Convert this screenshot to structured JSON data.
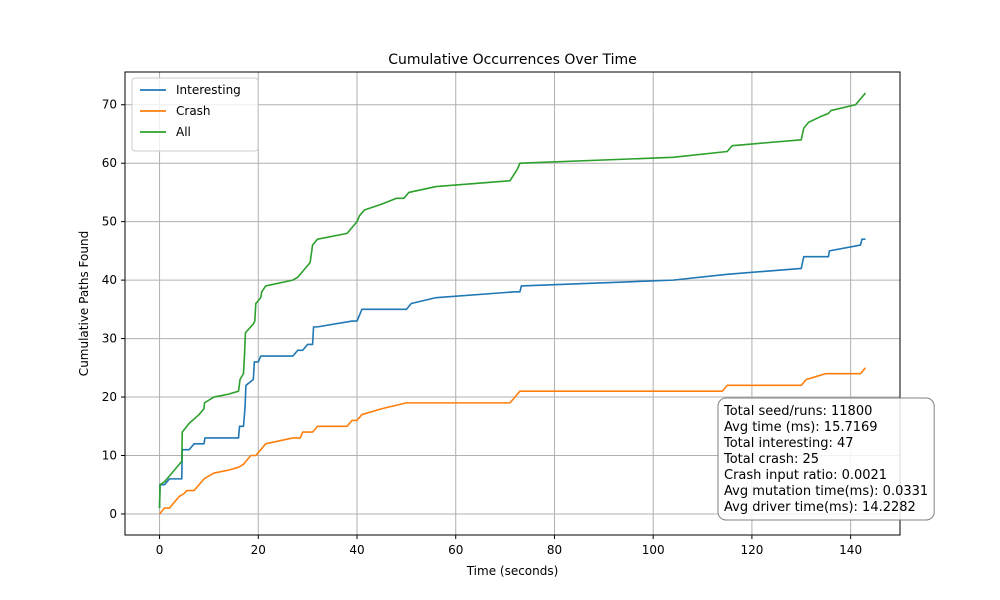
{
  "chart_data": {
    "type": "line",
    "title": "Cumulative Occurrences Over Time",
    "xlabel": "Time (seconds)",
    "ylabel": "Cumulative Paths Found",
    "xlim": [
      -7,
      150
    ],
    "ylim": [
      -3.6,
      75.6
    ],
    "xticks": [
      0,
      20,
      40,
      60,
      80,
      100,
      120,
      140
    ],
    "yticks": [
      0,
      10,
      20,
      30,
      40,
      50,
      60,
      70
    ],
    "grid": true,
    "legend_position": "top-left",
    "series": [
      {
        "name": "Interesting",
        "color": "#1f77b4",
        "points": [
          [
            0,
            1
          ],
          [
            0.1,
            5
          ],
          [
            1,
            5
          ],
          [
            1.5,
            5.5
          ],
          [
            2,
            6
          ],
          [
            4.5,
            6
          ],
          [
            4.6,
            11
          ],
          [
            6,
            11
          ],
          [
            7,
            12
          ],
          [
            9,
            12
          ],
          [
            9.2,
            13
          ],
          [
            16,
            13
          ],
          [
            16.2,
            15
          ],
          [
            17,
            15
          ],
          [
            17.3,
            18
          ],
          [
            17.5,
            22
          ],
          [
            19,
            23
          ],
          [
            19.2,
            26
          ],
          [
            20,
            26
          ],
          [
            20.5,
            27
          ],
          [
            27,
            27
          ],
          [
            28,
            28
          ],
          [
            29,
            28
          ],
          [
            30,
            29
          ],
          [
            31,
            29
          ],
          [
            31.2,
            32
          ],
          [
            32,
            32
          ],
          [
            39,
            33
          ],
          [
            40,
            33
          ],
          [
            40.5,
            34
          ],
          [
            41,
            35
          ],
          [
            50,
            35
          ],
          [
            51,
            36
          ],
          [
            56,
            37
          ],
          [
            72,
            38
          ],
          [
            73,
            38
          ],
          [
            73.3,
            39
          ],
          [
            104,
            40
          ],
          [
            115,
            41
          ],
          [
            130,
            42
          ],
          [
            130.5,
            44
          ],
          [
            135.5,
            44
          ],
          [
            135.7,
            45
          ],
          [
            142,
            46
          ],
          [
            142.3,
            47
          ],
          [
            143,
            47
          ]
        ]
      },
      {
        "name": "Crash",
        "color": "#ff7f0e",
        "points": [
          [
            0,
            0
          ],
          [
            0.5,
            0.5
          ],
          [
            1,
            1
          ],
          [
            2,
            1
          ],
          [
            3,
            2
          ],
          [
            4,
            3
          ],
          [
            5,
            3.5
          ],
          [
            5.5,
            4
          ],
          [
            7,
            4
          ],
          [
            8,
            5
          ],
          [
            9,
            6
          ],
          [
            10,
            6.5
          ],
          [
            11,
            7
          ],
          [
            14,
            7.5
          ],
          [
            16,
            8
          ],
          [
            17,
            8.5
          ],
          [
            18,
            9.5
          ],
          [
            18.5,
            10
          ],
          [
            19.5,
            10
          ],
          [
            20,
            10.5
          ],
          [
            21,
            11.5
          ],
          [
            21.5,
            12
          ],
          [
            27,
            13
          ],
          [
            28.5,
            13
          ],
          [
            29,
            14
          ],
          [
            30,
            14
          ],
          [
            31,
            14
          ],
          [
            32,
            15
          ],
          [
            38,
            15
          ],
          [
            39,
            16
          ],
          [
            40,
            16
          ],
          [
            41,
            17
          ],
          [
            45,
            18
          ],
          [
            50,
            19
          ],
          [
            71,
            19
          ],
          [
            72,
            20
          ],
          [
            73,
            21
          ],
          [
            114,
            21
          ],
          [
            115,
            22
          ],
          [
            130,
            22
          ],
          [
            131,
            23
          ],
          [
            133,
            23.5
          ],
          [
            135,
            24
          ],
          [
            142,
            24
          ],
          [
            143,
            25
          ]
        ]
      },
      {
        "name": "All",
        "color": "#2ca02c",
        "points": [
          [
            0,
            1
          ],
          [
            0.1,
            5
          ],
          [
            1,
            5.5
          ],
          [
            2,
            6.5
          ],
          [
            3,
            7.5
          ],
          [
            4,
            8.5
          ],
          [
            4.5,
            9
          ],
          [
            4.6,
            14
          ],
          [
            6,
            15.5
          ],
          [
            8,
            17
          ],
          [
            9,
            18
          ],
          [
            9.1,
            19
          ],
          [
            11,
            20
          ],
          [
            14,
            20.5
          ],
          [
            16,
            21
          ],
          [
            16.3,
            23
          ],
          [
            17,
            24
          ],
          [
            17.2,
            27
          ],
          [
            17.4,
            31
          ],
          [
            19,
            32.5
          ],
          [
            19.3,
            33
          ],
          [
            19.5,
            36
          ],
          [
            20,
            36.5
          ],
          [
            20.5,
            37
          ],
          [
            20.7,
            38
          ],
          [
            21.5,
            39
          ],
          [
            27,
            40
          ],
          [
            28,
            40.5
          ],
          [
            29,
            41.5
          ],
          [
            30.5,
            43
          ],
          [
            31,
            46
          ],
          [
            32,
            47
          ],
          [
            38,
            48
          ],
          [
            39,
            49
          ],
          [
            40,
            50
          ],
          [
            40.5,
            51
          ],
          [
            41.5,
            52
          ],
          [
            45,
            53
          ],
          [
            48,
            54
          ],
          [
            49.5,
            54
          ],
          [
            50.5,
            55
          ],
          [
            56,
            56
          ],
          [
            71,
            57
          ],
          [
            72.5,
            59
          ],
          [
            73,
            60
          ],
          [
            104,
            61
          ],
          [
            115,
            62
          ],
          [
            116,
            63
          ],
          [
            130,
            64
          ],
          [
            130.5,
            66
          ],
          [
            131.5,
            67
          ],
          [
            134,
            68
          ],
          [
            135.5,
            68.5
          ],
          [
            136,
            69
          ],
          [
            141,
            70
          ],
          [
            141.5,
            70.5
          ],
          [
            142,
            71
          ],
          [
            143,
            72
          ]
        ]
      }
    ]
  },
  "stats_box": {
    "lines": [
      "Total seed/runs: 11800",
      "Avg time (ms): 15.7169",
      "Total interesting: 47",
      "Total crash: 25",
      "Crash input ratio: 0.0021",
      "Avg mutation time(ms): 0.0331",
      "Avg driver time(ms): 14.2282"
    ]
  }
}
